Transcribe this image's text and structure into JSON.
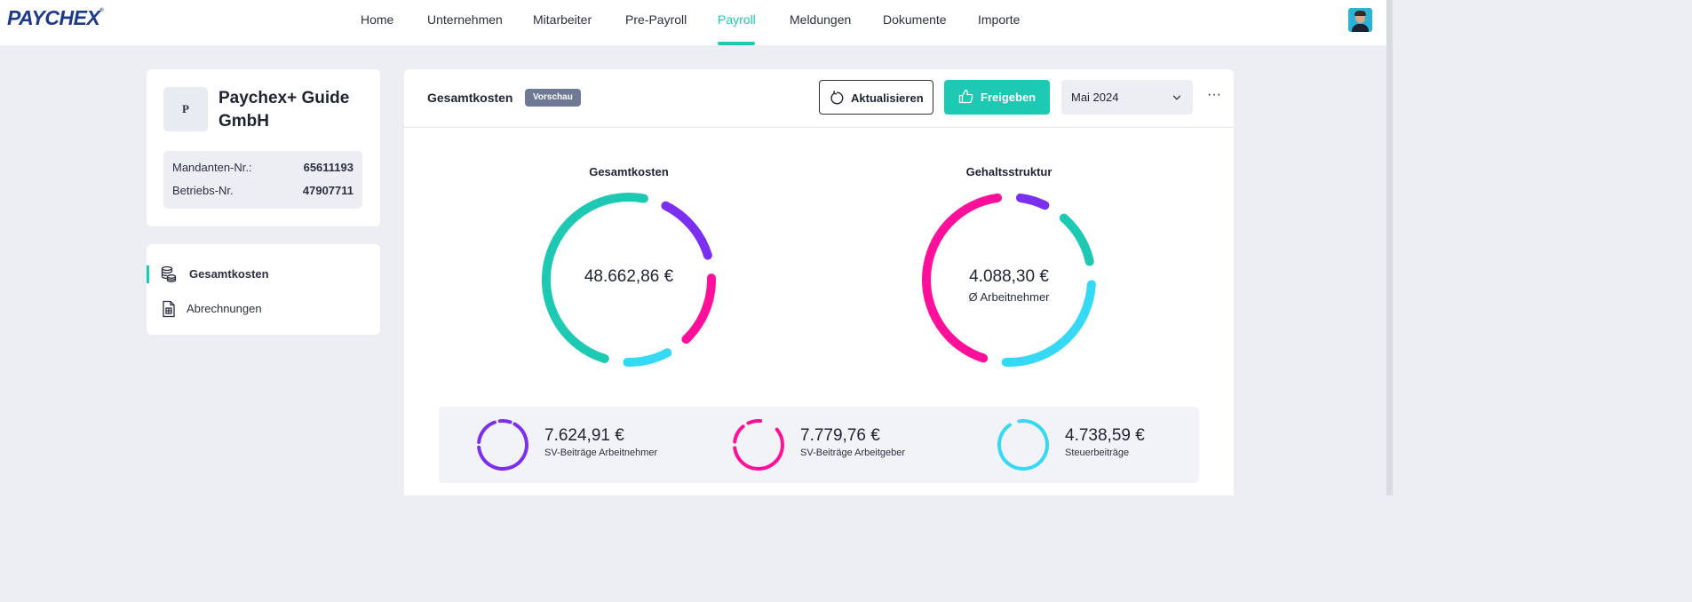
{
  "header": {
    "logo": "PAYCHEX",
    "logo_mark": "®",
    "nav": [
      {
        "label": "Home",
        "active": false
      },
      {
        "label": "Unternehmen",
        "active": false
      },
      {
        "label": "Mitarbeiter",
        "active": false
      },
      {
        "label": "Pre-Payroll",
        "active": false
      },
      {
        "label": "Payroll",
        "active": true
      },
      {
        "label": "Meldungen",
        "active": false
      },
      {
        "label": "Dokumente",
        "active": false
      },
      {
        "label": "Importe",
        "active": false
      }
    ]
  },
  "company": {
    "logo_letter": "P",
    "name": "Paychex+ Guide GmbH",
    "client_label": "Mandanten-Nr.:",
    "client_number": "65611193",
    "business_label": "Betriebs-Nr.",
    "business_number": "47907711"
  },
  "sidebar": {
    "items": [
      {
        "label": "Gesamtkosten",
        "icon": "coins-stack-icon",
        "active": true
      },
      {
        "label": "Abrechnungen",
        "icon": "document-icon",
        "active": false
      }
    ]
  },
  "main": {
    "title": "Gesamtkosten",
    "badge": "Vorschau",
    "refresh_label": "Aktualisieren",
    "approve_label": "Freigeben",
    "month": "Mai 2024",
    "more": "···"
  },
  "colors": {
    "accent": "#1ec9b3",
    "purple": "#7b2ff0",
    "magenta": "#ff0f9a",
    "cyan": "#35d9f5"
  },
  "chart_data": [
    {
      "type": "pie",
      "title": "Gesamtkosten",
      "center_value": "48.662,86 €",
      "series": [
        {
          "name": "",
          "value": 28519.6,
          "color": "#1ec9b3"
        },
        {
          "name": "SV-Beiträge Arbeitnehmer",
          "value": 7624.91,
          "color": "#7b2ff0"
        },
        {
          "name": "SV-Beiträge Arbeitgeber",
          "value": 7779.76,
          "color": "#ff0f9a"
        },
        {
          "name": "Steuerbeiträge",
          "value": 4738.59,
          "color": "#35d9f5"
        }
      ]
    },
    {
      "type": "pie",
      "title": "Gehaltsstruktur",
      "center_value": "4.088,30 €",
      "center_label": "Ø Arbeitnehmer",
      "series": [
        {
          "value": 6,
          "color": "#7b2ff0"
        },
        {
          "value": 12,
          "color": "#1ec9b3"
        },
        {
          "value": 30,
          "color": "#35d9f5"
        },
        {
          "value": 52,
          "color": "#ff0f9a"
        }
      ]
    }
  ],
  "summary": [
    {
      "amount": "7.624,91 €",
      "label": "SV-Beiträge Arbeitnehmer",
      "color": "#7b2ff0"
    },
    {
      "amount": "7.779,76 €",
      "label": "SV-Beiträge Arbeitgeber",
      "color": "#ff0f9a"
    },
    {
      "amount": "4.738,59 €",
      "label": "Steuerbeiträge",
      "color": "#35d9f5"
    }
  ]
}
